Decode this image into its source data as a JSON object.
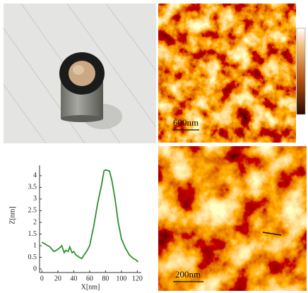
{
  "chart_data": {
    "type": "line",
    "x_label": "X[nm]",
    "y_label": "Z[nm]",
    "x": [
      0,
      5,
      10,
      15,
      18,
      22,
      25,
      28,
      30,
      33,
      35,
      38,
      40,
      43,
      47,
      50,
      53,
      57,
      60,
      65,
      70,
      75,
      78,
      80,
      85,
      88,
      92,
      96,
      100,
      105,
      110,
      115,
      118,
      121
    ],
    "values": [
      1.15,
      1.05,
      0.95,
      0.75,
      0.8,
      0.9,
      1.0,
      0.7,
      0.8,
      0.75,
      0.95,
      0.7,
      0.75,
      0.6,
      0.5,
      0.45,
      0.6,
      0.8,
      1.0,
      1.8,
      2.8,
      3.6,
      4.2,
      4.25,
      4.2,
      3.8,
      3.0,
      2.0,
      1.3,
      0.9,
      0.6,
      0.45,
      0.4,
      0.3
    ],
    "color": "#2f8f2f",
    "xlim": [
      -3,
      125
    ],
    "xticks": [
      0,
      20,
      40,
      60,
      80,
      100,
      120
    ],
    "ylim": [
      -0.15,
      4.45
    ],
    "yticks": [
      0,
      0.5,
      1,
      1.5,
      2,
      2.5,
      3,
      3.5,
      4
    ]
  },
  "images": {
    "afm_large": {
      "scale_bar": "600nm"
    },
    "afm_zoom": {
      "scale_bar": "200nm"
    }
  }
}
